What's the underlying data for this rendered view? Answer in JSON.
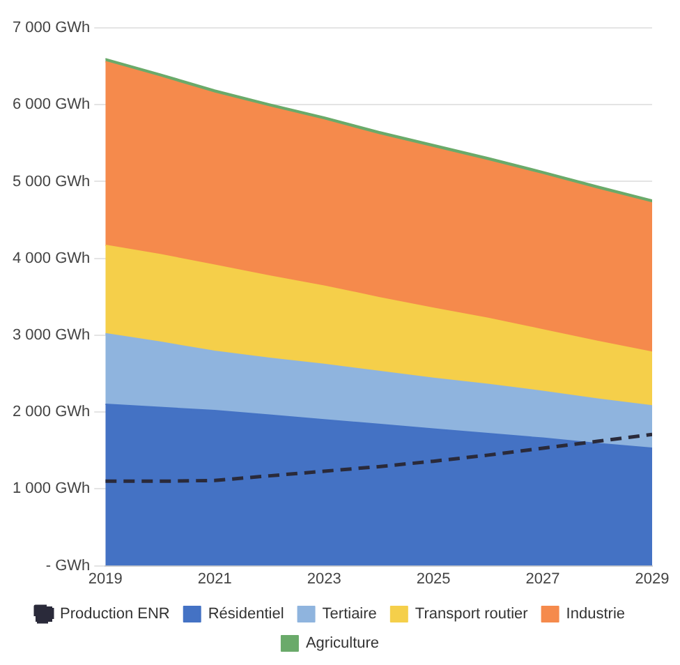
{
  "chart_data": {
    "type": "area",
    "stacked": true,
    "x": [
      2019,
      2020,
      2021,
      2022,
      2023,
      2024,
      2025,
      2026,
      2027,
      2028,
      2029
    ],
    "xlim": [
      2019,
      2029
    ],
    "xticks": [
      2019,
      2021,
      2023,
      2025,
      2027,
      2029
    ],
    "ylim": [
      0,
      7000
    ],
    "yticks": [
      {
        "value": 0,
        "label": "- GWh"
      },
      {
        "value": 1000,
        "label": "1 000 GWh"
      },
      {
        "value": 2000,
        "label": "2 000 GWh"
      },
      {
        "value": 3000,
        "label": "3 000 GWh"
      },
      {
        "value": 4000,
        "label": "4 000 GWh"
      },
      {
        "value": 5000,
        "label": "5 000 GWh"
      },
      {
        "value": 6000,
        "label": "6 000 GWh"
      },
      {
        "value": 7000,
        "label": "7 000 GWh"
      }
    ],
    "grid": "y",
    "legend": "bottom",
    "marker": "none",
    "series": [
      {
        "name": "Résidentiel",
        "color": "#4472c4",
        "values": [
          2100,
          2060,
          2020,
          1960,
          1900,
          1840,
          1780,
          1720,
          1660,
          1590,
          1530
        ]
      },
      {
        "name": "Tertiaire",
        "color": "#8fb4de",
        "values": [
          920,
          850,
          770,
          740,
          720,
          690,
          660,
          640,
          610,
          580,
          550
        ]
      },
      {
        "name": "Transport routier",
        "color": "#f5cf4a",
        "values": [
          1150,
          1140,
          1120,
          1070,
          1020,
          960,
          910,
          860,
          800,
          750,
          700
        ]
      },
      {
        "name": "Industrie",
        "color": "#f58a4c",
        "values": [
          2390,
          2310,
          2240,
          2200,
          2160,
          2120,
          2090,
          2050,
          2020,
          1980,
          1940
        ]
      },
      {
        "name": "Agriculture",
        "color": "#6aaa6a",
        "values": [
          40,
          40,
          40,
          40,
          40,
          40,
          40,
          40,
          40,
          40,
          40
        ]
      },
      {
        "name": "Production ENR",
        "type": "line",
        "line_style": "dashed",
        "color": "#2a2a3a",
        "values": [
          1100,
          1100,
          1110,
          1170,
          1230,
          1290,
          1360,
          1440,
          1530,
          1620,
          1710
        ]
      }
    ]
  }
}
